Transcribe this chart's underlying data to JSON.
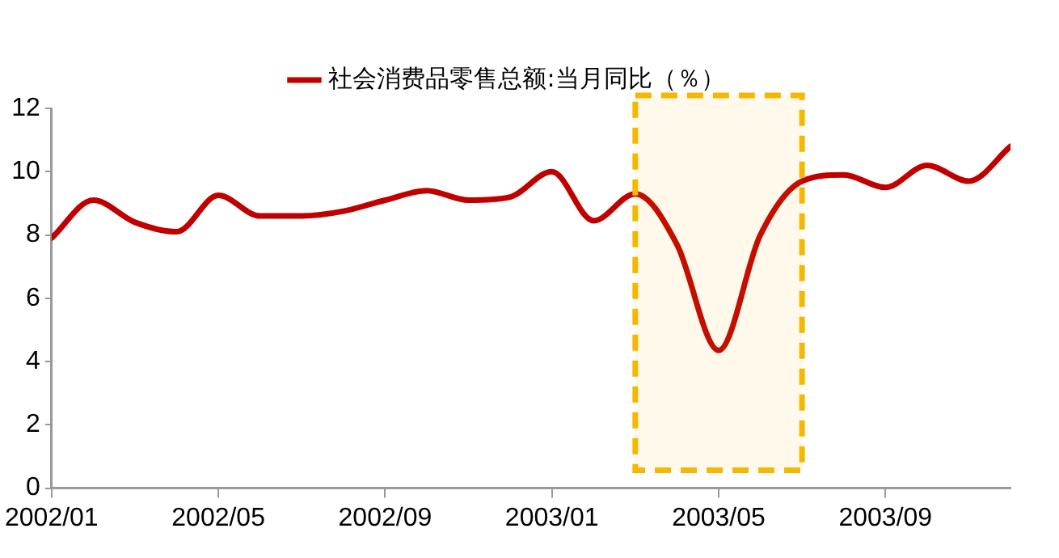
{
  "chart_data": {
    "type": "line",
    "x": [
      "2002-01",
      "2002-02",
      "2002-03",
      "2002-04",
      "2002-05",
      "2002-06",
      "2002-07",
      "2002-08",
      "2002-09",
      "2002-10",
      "2002-11",
      "2002-12",
      "2003-01",
      "2003-02",
      "2003-03",
      "2003-04",
      "2003-05",
      "2003-06",
      "2003-07",
      "2003-08",
      "2003-09",
      "2003-10",
      "2003-11",
      "2003-12"
    ],
    "series": [
      {
        "name": "社会消费品零售总额:当月同比（％）",
        "color": "#c00000",
        "values": [
          7.9,
          9.1,
          8.4,
          8.1,
          9.25,
          8.6,
          8.6,
          8.75,
          9.1,
          9.4,
          9.1,
          9.2,
          10.0,
          8.45,
          9.3,
          7.7,
          4.35,
          8.0,
          9.7,
          9.9,
          9.5,
          10.2,
          9.7,
          10.8
        ]
      }
    ],
    "xlim": [
      "2002-01",
      "2003-12"
    ],
    "xticks": [
      {
        "value": "2002-01",
        "label": "2002/01"
      },
      {
        "value": "2002-05",
        "label": "2002/05"
      },
      {
        "value": "2002-09",
        "label": "2002/09"
      },
      {
        "value": "2003-01",
        "label": "2003/01"
      },
      {
        "value": "2003-05",
        "label": "2003/05"
      },
      {
        "value": "2003-09",
        "label": "2003/09"
      }
    ],
    "ylim": [
      0,
      12
    ],
    "yticks": [
      0,
      2,
      4,
      6,
      8,
      10,
      12
    ],
    "bands": [
      {
        "axis": "x",
        "from": "2003-03",
        "to": "2003-07",
        "color": "#f5b800"
      }
    ],
    "grid": false,
    "legend": "top",
    "marker": "none",
    "line_style": "solid"
  }
}
